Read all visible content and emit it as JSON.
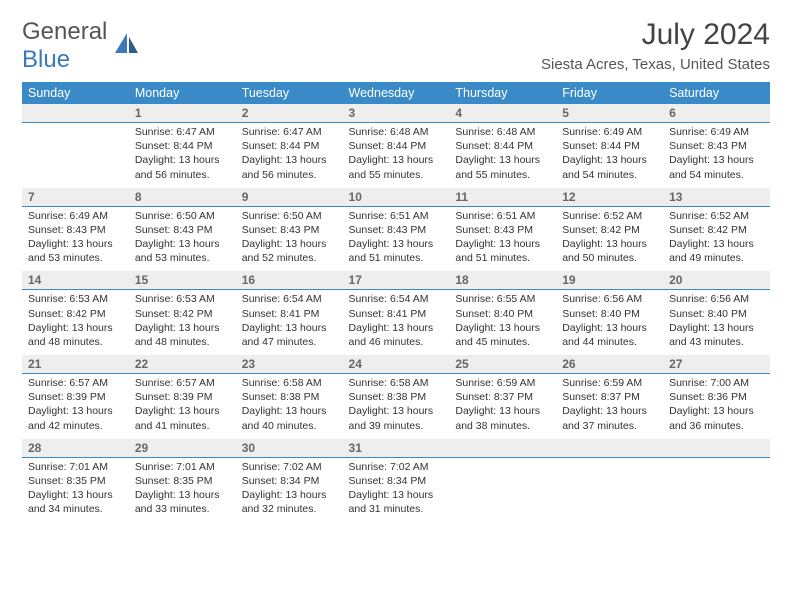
{
  "brand": {
    "text1": "General",
    "text2": "Blue"
  },
  "title": "July 2024",
  "location": "Siesta Acres, Texas, United States",
  "colors": {
    "header_bg": "#3a8ac8",
    "header_text": "#ffffff",
    "daynum_bg": "#eeeeee",
    "border": "#3a8ac8"
  },
  "day_headers": [
    "Sunday",
    "Monday",
    "Tuesday",
    "Wednesday",
    "Thursday",
    "Friday",
    "Saturday"
  ],
  "weeks": [
    [
      null,
      {
        "n": "1",
        "sr": "Sunrise: 6:47 AM",
        "ss": "Sunset: 8:44 PM",
        "dl": "Daylight: 13 hours and 56 minutes."
      },
      {
        "n": "2",
        "sr": "Sunrise: 6:47 AM",
        "ss": "Sunset: 8:44 PM",
        "dl": "Daylight: 13 hours and 56 minutes."
      },
      {
        "n": "3",
        "sr": "Sunrise: 6:48 AM",
        "ss": "Sunset: 8:44 PM",
        "dl": "Daylight: 13 hours and 55 minutes."
      },
      {
        "n": "4",
        "sr": "Sunrise: 6:48 AM",
        "ss": "Sunset: 8:44 PM",
        "dl": "Daylight: 13 hours and 55 minutes."
      },
      {
        "n": "5",
        "sr": "Sunrise: 6:49 AM",
        "ss": "Sunset: 8:44 PM",
        "dl": "Daylight: 13 hours and 54 minutes."
      },
      {
        "n": "6",
        "sr": "Sunrise: 6:49 AM",
        "ss": "Sunset: 8:43 PM",
        "dl": "Daylight: 13 hours and 54 minutes."
      }
    ],
    [
      {
        "n": "7",
        "sr": "Sunrise: 6:49 AM",
        "ss": "Sunset: 8:43 PM",
        "dl": "Daylight: 13 hours and 53 minutes."
      },
      {
        "n": "8",
        "sr": "Sunrise: 6:50 AM",
        "ss": "Sunset: 8:43 PM",
        "dl": "Daylight: 13 hours and 53 minutes."
      },
      {
        "n": "9",
        "sr": "Sunrise: 6:50 AM",
        "ss": "Sunset: 8:43 PM",
        "dl": "Daylight: 13 hours and 52 minutes."
      },
      {
        "n": "10",
        "sr": "Sunrise: 6:51 AM",
        "ss": "Sunset: 8:43 PM",
        "dl": "Daylight: 13 hours and 51 minutes."
      },
      {
        "n": "11",
        "sr": "Sunrise: 6:51 AM",
        "ss": "Sunset: 8:43 PM",
        "dl": "Daylight: 13 hours and 51 minutes."
      },
      {
        "n": "12",
        "sr": "Sunrise: 6:52 AM",
        "ss": "Sunset: 8:42 PM",
        "dl": "Daylight: 13 hours and 50 minutes."
      },
      {
        "n": "13",
        "sr": "Sunrise: 6:52 AM",
        "ss": "Sunset: 8:42 PM",
        "dl": "Daylight: 13 hours and 49 minutes."
      }
    ],
    [
      {
        "n": "14",
        "sr": "Sunrise: 6:53 AM",
        "ss": "Sunset: 8:42 PM",
        "dl": "Daylight: 13 hours and 48 minutes."
      },
      {
        "n": "15",
        "sr": "Sunrise: 6:53 AM",
        "ss": "Sunset: 8:42 PM",
        "dl": "Daylight: 13 hours and 48 minutes."
      },
      {
        "n": "16",
        "sr": "Sunrise: 6:54 AM",
        "ss": "Sunset: 8:41 PM",
        "dl": "Daylight: 13 hours and 47 minutes."
      },
      {
        "n": "17",
        "sr": "Sunrise: 6:54 AM",
        "ss": "Sunset: 8:41 PM",
        "dl": "Daylight: 13 hours and 46 minutes."
      },
      {
        "n": "18",
        "sr": "Sunrise: 6:55 AM",
        "ss": "Sunset: 8:40 PM",
        "dl": "Daylight: 13 hours and 45 minutes."
      },
      {
        "n": "19",
        "sr": "Sunrise: 6:56 AM",
        "ss": "Sunset: 8:40 PM",
        "dl": "Daylight: 13 hours and 44 minutes."
      },
      {
        "n": "20",
        "sr": "Sunrise: 6:56 AM",
        "ss": "Sunset: 8:40 PM",
        "dl": "Daylight: 13 hours and 43 minutes."
      }
    ],
    [
      {
        "n": "21",
        "sr": "Sunrise: 6:57 AM",
        "ss": "Sunset: 8:39 PM",
        "dl": "Daylight: 13 hours and 42 minutes."
      },
      {
        "n": "22",
        "sr": "Sunrise: 6:57 AM",
        "ss": "Sunset: 8:39 PM",
        "dl": "Daylight: 13 hours and 41 minutes."
      },
      {
        "n": "23",
        "sr": "Sunrise: 6:58 AM",
        "ss": "Sunset: 8:38 PM",
        "dl": "Daylight: 13 hours and 40 minutes."
      },
      {
        "n": "24",
        "sr": "Sunrise: 6:58 AM",
        "ss": "Sunset: 8:38 PM",
        "dl": "Daylight: 13 hours and 39 minutes."
      },
      {
        "n": "25",
        "sr": "Sunrise: 6:59 AM",
        "ss": "Sunset: 8:37 PM",
        "dl": "Daylight: 13 hours and 38 minutes."
      },
      {
        "n": "26",
        "sr": "Sunrise: 6:59 AM",
        "ss": "Sunset: 8:37 PM",
        "dl": "Daylight: 13 hours and 37 minutes."
      },
      {
        "n": "27",
        "sr": "Sunrise: 7:00 AM",
        "ss": "Sunset: 8:36 PM",
        "dl": "Daylight: 13 hours and 36 minutes."
      }
    ],
    [
      {
        "n": "28",
        "sr": "Sunrise: 7:01 AM",
        "ss": "Sunset: 8:35 PM",
        "dl": "Daylight: 13 hours and 34 minutes."
      },
      {
        "n": "29",
        "sr": "Sunrise: 7:01 AM",
        "ss": "Sunset: 8:35 PM",
        "dl": "Daylight: 13 hours and 33 minutes."
      },
      {
        "n": "30",
        "sr": "Sunrise: 7:02 AM",
        "ss": "Sunset: 8:34 PM",
        "dl": "Daylight: 13 hours and 32 minutes."
      },
      {
        "n": "31",
        "sr": "Sunrise: 7:02 AM",
        "ss": "Sunset: 8:34 PM",
        "dl": "Daylight: 13 hours and 31 minutes."
      },
      null,
      null,
      null
    ]
  ]
}
